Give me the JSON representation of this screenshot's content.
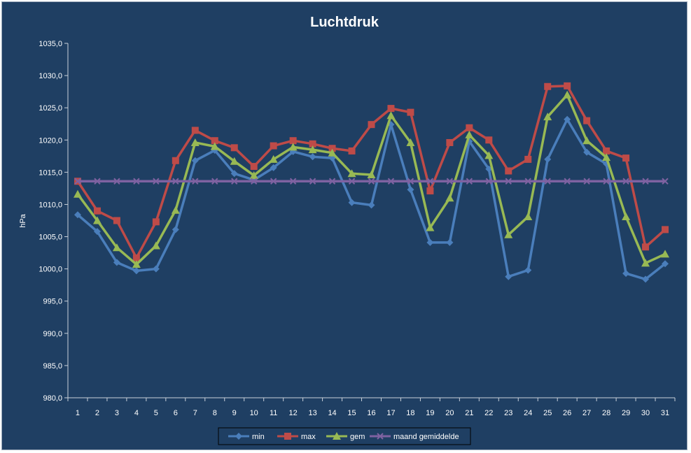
{
  "chart_data": {
    "type": "line",
    "title": "Luchtdruk",
    "xlabel": "",
    "ylabel": "hPa",
    "ylim": [
      980,
      1035
    ],
    "ystep": 5,
    "y_tick_labels": [
      "980,0",
      "985,0",
      "990,0",
      "995,0",
      "1000,0",
      "1005,0",
      "1010,0",
      "1015,0",
      "1020,0",
      "1025,0",
      "1030,0",
      "1035,0"
    ],
    "categories": [
      "1",
      "2",
      "3",
      "4",
      "5",
      "6",
      "7",
      "8",
      "9",
      "10",
      "11",
      "12",
      "13",
      "14",
      "15",
      "16",
      "17",
      "18",
      "19",
      "20",
      "21",
      "22",
      "23",
      "24",
      "25",
      "26",
      "27",
      "28",
      "29",
      "30",
      "31"
    ],
    "grid": false,
    "legend_position": "bottom",
    "series": [
      {
        "name": "min",
        "color": "#4a7ebb",
        "marker": "diamond",
        "values": [
          1008.4,
          1005.8,
          1001.0,
          999.7,
          1000.0,
          1006.1,
          1016.8,
          1018.4,
          1014.8,
          1013.8,
          1015.7,
          1018.2,
          1017.4,
          1017.2,
          1010.3,
          1009.9,
          1022.4,
          1012.3,
          1004.1,
          1004.1,
          1019.8,
          1015.5,
          998.8,
          999.8,
          1017.0,
          1023.2,
          1018.1,
          1016.3,
          999.3,
          998.4,
          1000.8
        ]
      },
      {
        "name": "max",
        "color": "#be4b48",
        "marker": "square",
        "values": [
          1013.6,
          1009.0,
          1007.5,
          1001.7,
          1007.3,
          1016.8,
          1021.5,
          1019.9,
          1018.8,
          1015.9,
          1019.1,
          1019.9,
          1019.4,
          1018.7,
          1018.3,
          1022.4,
          1024.9,
          1024.3,
          1012.1,
          1019.6,
          1021.9,
          1020.0,
          1015.2,
          1017.0,
          1028.3,
          1028.4,
          1023.0,
          1018.3,
          1017.2,
          1003.4,
          1006.1
        ]
      },
      {
        "name": "gem",
        "color": "#98b954",
        "marker": "triangle",
        "values": [
          1011.6,
          1007.5,
          1003.3,
          1000.7,
          1003.6,
          1009.1,
          1019.6,
          1019.0,
          1016.7,
          1014.5,
          1017.0,
          1018.9,
          1018.5,
          1018.0,
          1014.8,
          1014.6,
          1023.8,
          1019.6,
          1006.4,
          1011.0,
          1020.8,
          1017.6,
          1005.3,
          1008.1,
          1023.6,
          1027.0,
          1019.9,
          1017.3,
          1008.1,
          1000.9,
          1002.3
        ]
      },
      {
        "name": "maand gemiddelde",
        "color": "#7e62a1",
        "marker": "x",
        "values": [
          1013.6,
          1013.6,
          1013.6,
          1013.6,
          1013.6,
          1013.6,
          1013.6,
          1013.6,
          1013.6,
          1013.6,
          1013.6,
          1013.6,
          1013.6,
          1013.6,
          1013.6,
          1013.6,
          1013.6,
          1013.6,
          1013.6,
          1013.6,
          1013.6,
          1013.6,
          1013.6,
          1013.6,
          1013.6,
          1013.6,
          1013.6,
          1013.6,
          1013.6,
          1013.6,
          1013.6
        ]
      }
    ]
  }
}
